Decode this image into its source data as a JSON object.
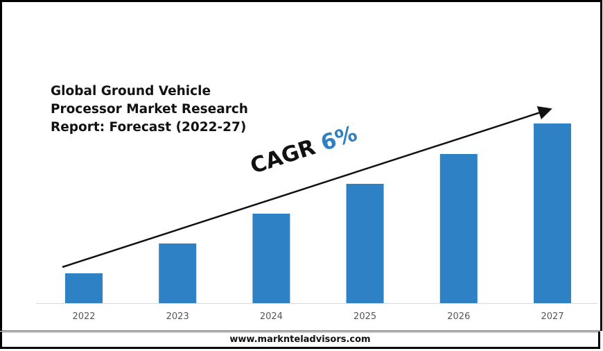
{
  "title": "Global Ground Vehicle Processor Market Research Report: Forecast (2022-27)",
  "cagr_label": "CAGR",
  "cagr_value": "6%",
  "website": "www.marknteladvisors.com",
  "colors": {
    "bar": "#2e81c4",
    "cagr_value": "#2e7fc3",
    "arrow": "#111111"
  },
  "chart_data": {
    "type": "bar",
    "categories": [
      "2022",
      "2023",
      "2024",
      "2025",
      "2026",
      "2027"
    ],
    "values": [
      1,
      2,
      3,
      4,
      5,
      6
    ],
    "value_note": "relative bar heights; no value axis printed",
    "title": "Global Ground Vehicle Processor Market Research Report: Forecast (2022-27)",
    "xlabel": "",
    "ylabel": "",
    "grid": false,
    "annotation": "CAGR 6%"
  }
}
